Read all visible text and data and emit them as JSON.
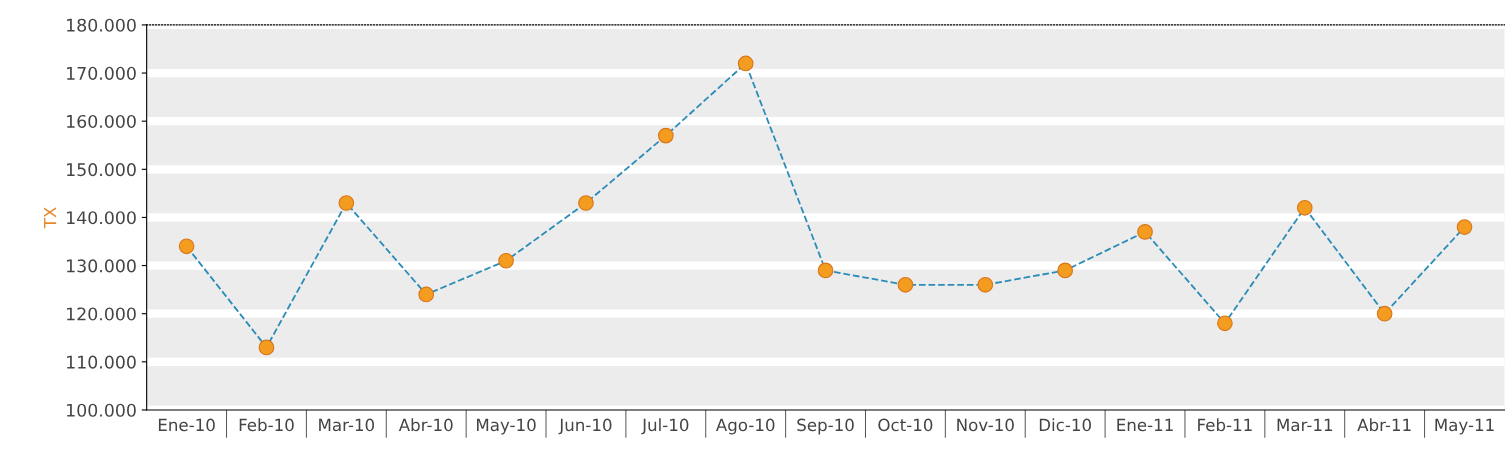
{
  "chart_data": {
    "type": "line",
    "ylabel": "TX",
    "categories": [
      "Ene-10",
      "Feb-10",
      "Mar-10",
      "Abr-10",
      "May-10",
      "Jun-10",
      "Jul-10",
      "Ago-10",
      "Sep-10",
      "Oct-10",
      "Nov-10",
      "Dic-10",
      "Ene-11",
      "Feb-11",
      "Mar-11",
      "Abr-11",
      "May-11"
    ],
    "series": [
      {
        "color": "#2b8cb8",
        "values": [
          134000,
          113000,
          143000,
          124000,
          131000,
          143000,
          157000,
          172000,
          129000,
          126000,
          126000,
          129000,
          137000,
          118000,
          142000,
          120000,
          138000
        ]
      }
    ],
    "ylim": [
      100000,
      180000
    ],
    "yticks": [
      {
        "value": 100000,
        "label": "100.000"
      },
      {
        "value": 110000,
        "label": "110.000"
      },
      {
        "value": 120000,
        "label": "120.000"
      },
      {
        "value": 130000,
        "label": "130.000"
      },
      {
        "value": 140000,
        "label": "140.000"
      },
      {
        "value": 150000,
        "label": "150.000"
      },
      {
        "value": 160000,
        "label": "160.000"
      },
      {
        "value": 170000,
        "label": "170.000"
      },
      {
        "value": 180000,
        "label": "180.000"
      }
    ],
    "grid": "y",
    "marker": "circle",
    "line_style": "dashed"
  }
}
